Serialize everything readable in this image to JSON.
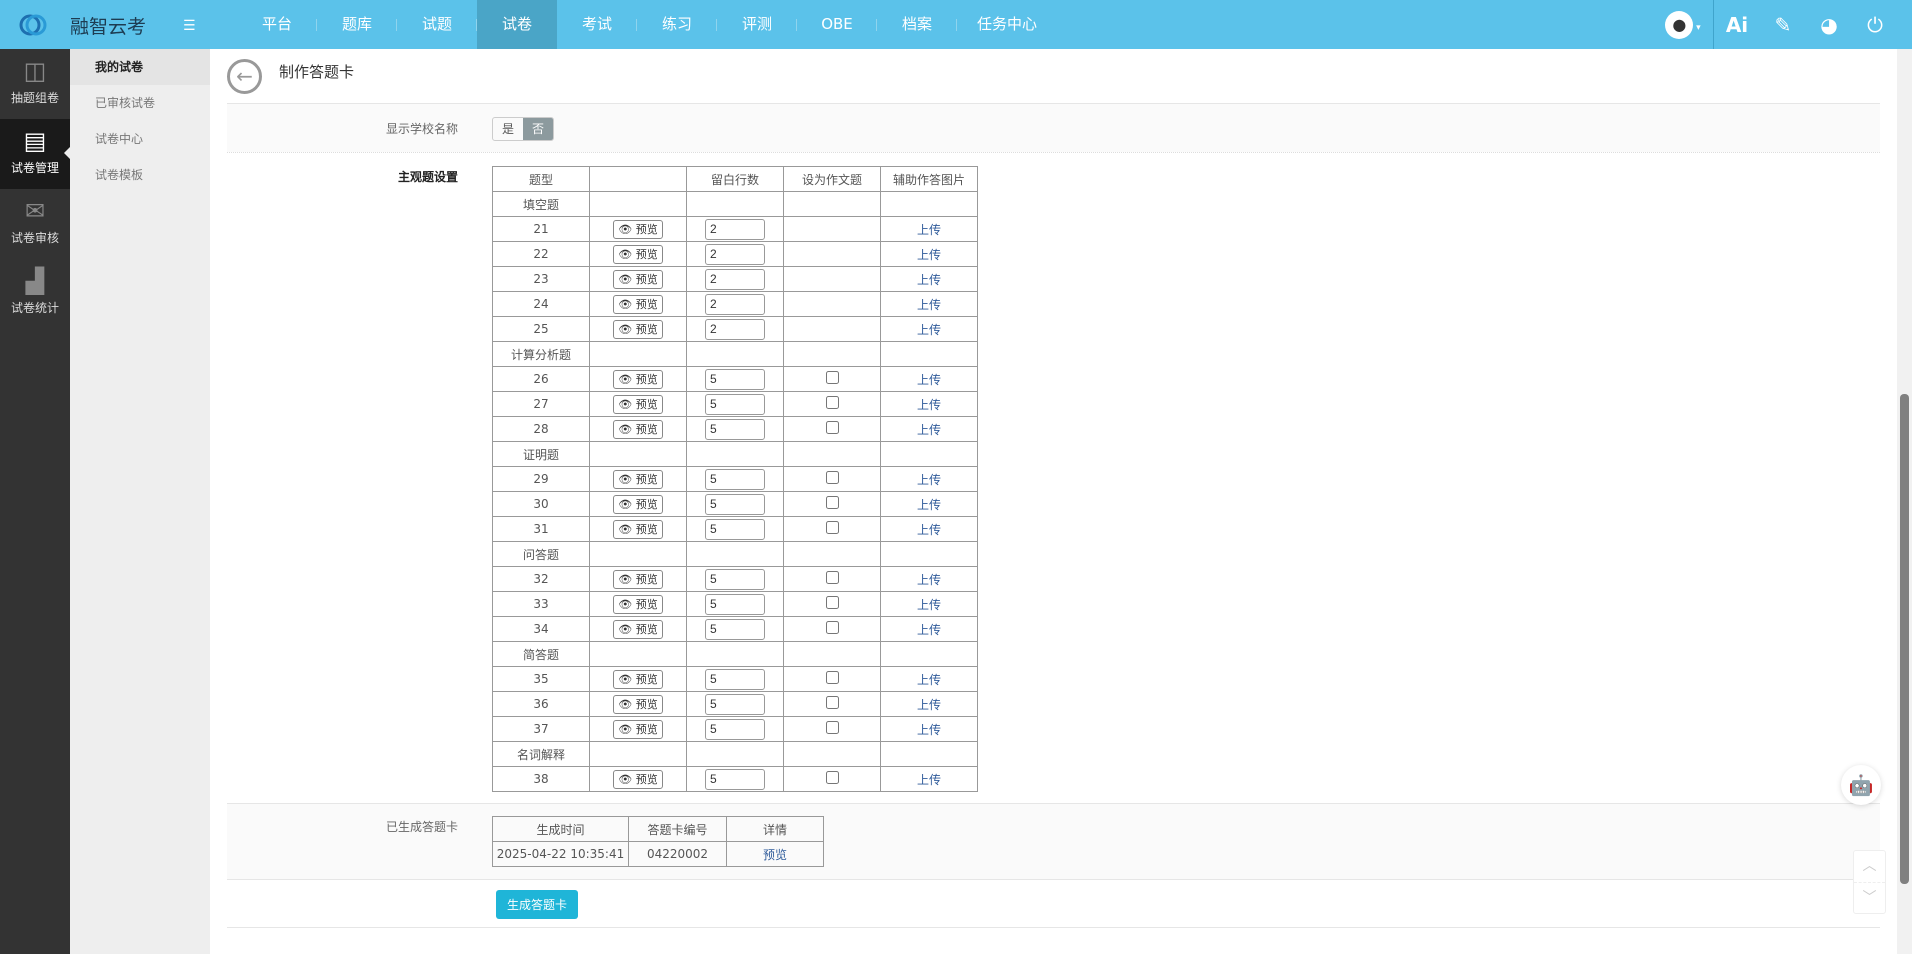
{
  "header": {
    "brand": "融智云考",
    "tabs": [
      "平台",
      "题库",
      "试题",
      "试卷",
      "考试",
      "练习",
      "评测",
      "OBE",
      "档案",
      "任务中心"
    ],
    "active_tab": "试卷",
    "right_icons": [
      "avatar",
      "ai-icon",
      "help-edit-icon",
      "palette-icon",
      "power-icon"
    ],
    "ai_label": "Ai",
    "accent": "#5bc2ea"
  },
  "sidebar": {
    "items": [
      {
        "label": "抽题组卷",
        "icon": "layout-icon"
      },
      {
        "label": "试卷管理",
        "icon": "documents-icon",
        "active": true
      },
      {
        "label": "试卷审核",
        "icon": "review-icon"
      },
      {
        "label": "试卷统计",
        "icon": "bar-chart-icon"
      }
    ]
  },
  "subnav": {
    "items": [
      "我的试卷",
      "已审核试卷",
      "试卷中心",
      "试卷模板"
    ],
    "active": "我的试卷"
  },
  "page": {
    "title": "制作答题卡"
  },
  "school": {
    "label": "显示学校名称",
    "yes": "是",
    "no": "否",
    "selected": "否"
  },
  "subjective": {
    "label": "主观题设置",
    "headers": [
      "题型",
      "",
      "留白行数",
      "设为作文题",
      "辅助作答图片"
    ],
    "preview_label": "预览",
    "upload_label": "上传",
    "groups": [
      {
        "name": "填空题",
        "rows": [
          {
            "no": "21",
            "lines": "2",
            "checkbox": false
          },
          {
            "no": "22",
            "lines": "2",
            "checkbox": false
          },
          {
            "no": "23",
            "lines": "2",
            "checkbox": false
          },
          {
            "no": "24",
            "lines": "2",
            "checkbox": false
          },
          {
            "no": "25",
            "lines": "2",
            "checkbox": false
          }
        ]
      },
      {
        "name": "计算分析题",
        "rows": [
          {
            "no": "26",
            "lines": "5",
            "checkbox": true
          },
          {
            "no": "27",
            "lines": "5",
            "checkbox": true
          },
          {
            "no": "28",
            "lines": "5",
            "checkbox": true
          }
        ]
      },
      {
        "name": "证明题",
        "rows": [
          {
            "no": "29",
            "lines": "5",
            "checkbox": true
          },
          {
            "no": "30",
            "lines": "5",
            "checkbox": true
          },
          {
            "no": "31",
            "lines": "5",
            "checkbox": true
          }
        ]
      },
      {
        "name": "问答题",
        "rows": [
          {
            "no": "32",
            "lines": "5",
            "checkbox": true
          },
          {
            "no": "33",
            "lines": "5",
            "checkbox": true
          },
          {
            "no": "34",
            "lines": "5",
            "checkbox": true
          }
        ]
      },
      {
        "name": "简答题",
        "rows": [
          {
            "no": "35",
            "lines": "5",
            "checkbox": true
          },
          {
            "no": "36",
            "lines": "5",
            "checkbox": true
          },
          {
            "no": "37",
            "lines": "5",
            "checkbox": true
          }
        ]
      },
      {
        "name": "名词解释",
        "rows": [
          {
            "no": "38",
            "lines": "5",
            "checkbox": true
          }
        ]
      }
    ]
  },
  "generated": {
    "label": "已生成答题卡",
    "headers": [
      "生成时间",
      "答题卡编号",
      "详情"
    ],
    "rows": [
      {
        "time": "2025-04-22 10:35:41",
        "code": "04220002",
        "detail": "预览"
      }
    ]
  },
  "actions": {
    "generate_label": "生成答题卡"
  }
}
